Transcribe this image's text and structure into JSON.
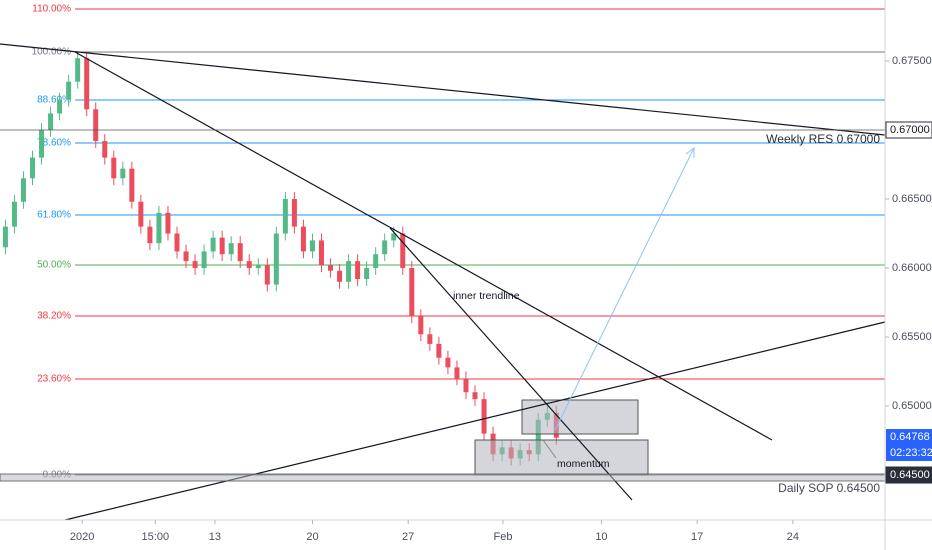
{
  "chart_data": {
    "type": "candlestick",
    "up_color": "#53b987",
    "down_color": "#eb4d5c",
    "open": [
      0.6615,
      0.663,
      0.6648,
      0.6665,
      0.668,
      0.67,
      0.6712,
      0.6722,
      0.6735,
      0.6752,
      0.6715,
      0.6692,
      0.668,
      0.6665,
      0.6672,
      0.6648,
      0.663,
      0.6618,
      0.664,
      0.6625,
      0.6612,
      0.6605,
      0.66,
      0.6612,
      0.6622,
      0.661,
      0.6618,
      0.6605,
      0.66,
      0.6602,
      0.6588,
      0.6625,
      0.665,
      0.663,
      0.6612,
      0.662,
      0.6602,
      0.6598,
      0.659,
      0.6605,
      0.6592,
      0.66,
      0.661,
      0.662,
      0.6625,
      0.66,
      0.6565,
      0.6552,
      0.6545,
      0.6535,
      0.6528,
      0.652,
      0.651,
      0.6505,
      0.648,
      0.6465,
      0.647,
      0.6462,
      0.6468,
      0.6465,
      0.649,
      0.6495
    ],
    "high": [
      0.6635,
      0.6653,
      0.667,
      0.6685,
      0.6705,
      0.6717,
      0.6727,
      0.674,
      0.6757,
      0.6757,
      0.672,
      0.6697,
      0.6685,
      0.6677,
      0.6677,
      0.6653,
      0.6635,
      0.6645,
      0.6645,
      0.663,
      0.6617,
      0.661,
      0.6617,
      0.6627,
      0.6627,
      0.6623,
      0.6623,
      0.661,
      0.6607,
      0.6607,
      0.663,
      0.6655,
      0.6655,
      0.6635,
      0.6625,
      0.6625,
      0.6607,
      0.6603,
      0.661,
      0.661,
      0.6605,
      0.6615,
      0.6625,
      0.663,
      0.663,
      0.6605,
      0.657,
      0.6557,
      0.655,
      0.654,
      0.6533,
      0.6525,
      0.6515,
      0.651,
      0.6485,
      0.6475,
      0.6475,
      0.6473,
      0.6473,
      0.6495,
      0.65,
      0.65
    ],
    "low": [
      0.661,
      0.6625,
      0.6643,
      0.666,
      0.6675,
      0.6695,
      0.6707,
      0.6717,
      0.673,
      0.671,
      0.6687,
      0.6675,
      0.666,
      0.666,
      0.6643,
      0.6625,
      0.6613,
      0.6613,
      0.662,
      0.6607,
      0.66,
      0.6595,
      0.6595,
      0.6607,
      0.6605,
      0.6605,
      0.66,
      0.6595,
      0.6595,
      0.6583,
      0.6583,
      0.662,
      0.6625,
      0.6607,
      0.6607,
      0.6597,
      0.6593,
      0.6585,
      0.6585,
      0.6587,
      0.6587,
      0.6595,
      0.6605,
      0.6615,
      0.6595,
      0.656,
      0.6547,
      0.654,
      0.653,
      0.6523,
      0.6515,
      0.6505,
      0.65,
      0.6475,
      0.646,
      0.646,
      0.6457,
      0.6457,
      0.646,
      0.646,
      0.6485,
      0.6472
    ],
    "close": [
      0.663,
      0.6648,
      0.6665,
      0.668,
      0.67,
      0.6712,
      0.6722,
      0.6735,
      0.6752,
      0.6715,
      0.6692,
      0.668,
      0.6665,
      0.6672,
      0.6648,
      0.663,
      0.6618,
      0.664,
      0.6625,
      0.6612,
      0.6605,
      0.66,
      0.6612,
      0.6622,
      0.661,
      0.6618,
      0.6605,
      0.66,
      0.6602,
      0.6588,
      0.6625,
      0.665,
      0.663,
      0.6612,
      0.662,
      0.6602,
      0.6598,
      0.659,
      0.6605,
      0.6592,
      0.66,
      0.661,
      0.662,
      0.6625,
      0.66,
      0.6565,
      0.6552,
      0.6545,
      0.6535,
      0.6528,
      0.652,
      0.651,
      0.6505,
      0.648,
      0.6465,
      0.647,
      0.6462,
      0.6468,
      0.6465,
      0.649,
      0.6495,
      0.6477
    ],
    "ylim": [
      0.64174,
      0.67942
    ],
    "yticks": [
      {
        "value": 0.675,
        "label": "0.67500"
      },
      {
        "value": 0.665,
        "label": "0.66500"
      },
      {
        "value": 0.66,
        "label": "0.66000"
      },
      {
        "value": 0.655,
        "label": "0.65500"
      },
      {
        "value": 0.65,
        "label": "0.65000"
      }
    ],
    "xlim": [
      0,
      98
    ],
    "xticks": [
      {
        "value": 9.1,
        "label": "2020"
      },
      {
        "value": 17.2,
        "label": "15:00"
      },
      {
        "value": 23.8,
        "label": "13"
      },
      {
        "value": 34.6,
        "label": "20"
      },
      {
        "value": 45.2,
        "label": "27"
      },
      {
        "value": 55.7,
        "label": "Feb"
      },
      {
        "value": 66.6,
        "label": "10"
      },
      {
        "value": 77.2,
        "label": "17"
      },
      {
        "value": 87.8,
        "label": "24"
      }
    ],
    "fib_levels": [
      {
        "label": "110.00%",
        "price": 0.67877,
        "color": "#f23645"
      },
      {
        "label": "100.00%",
        "price": 0.67565,
        "color": "#787b86"
      },
      {
        "label": "88.60%",
        "price": 0.67217,
        "color": "#2196f3"
      },
      {
        "label": "78.60%",
        "price": 0.66906,
        "color": "#2196f3"
      },
      {
        "label": "61.80%",
        "price": 0.66384,
        "color": "#2196f3"
      },
      {
        "label": "50.00%",
        "price": 0.66022,
        "color": "#4caf50"
      },
      {
        "label": "38.20%",
        "price": 0.65652,
        "color": "#f23645"
      },
      {
        "label": "23.60%",
        "price": 0.65196,
        "color": "#f23645"
      },
      {
        "label": "0.00%",
        "price": 0.645,
        "color": "#787b86"
      }
    ],
    "levels": [
      {
        "price": 0.67,
        "label": "0.67000"
      },
      {
        "price": 0.645,
        "label": "0.64500"
      }
    ],
    "last_price": {
      "value": 0.64768,
      "label": "0.64768"
    },
    "countdown": "02:23:32",
    "annotations": [
      "inner trendline",
      "momentum",
      "Weekly RES 0.67000",
      "Daily SOP 0.64500"
    ]
  }
}
